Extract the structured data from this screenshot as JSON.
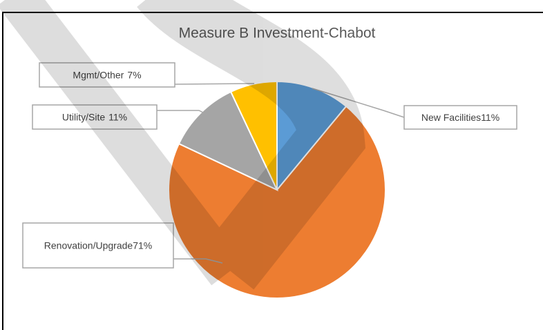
{
  "chart_data": {
    "type": "pie",
    "title": "Measure B Investment-Chabot",
    "categories": [
      "New Facilities",
      "Renovation/Upgrade",
      "Utility/Site",
      "Mgmt/Other"
    ],
    "values": [
      11,
      71,
      11,
      7
    ],
    "value_labels": [
      "11%",
      "71%",
      "11%",
      "7%"
    ],
    "colors": [
      "#5b9bd5",
      "#ed7d31",
      "#a5a5a5",
      "#ffc000"
    ]
  }
}
